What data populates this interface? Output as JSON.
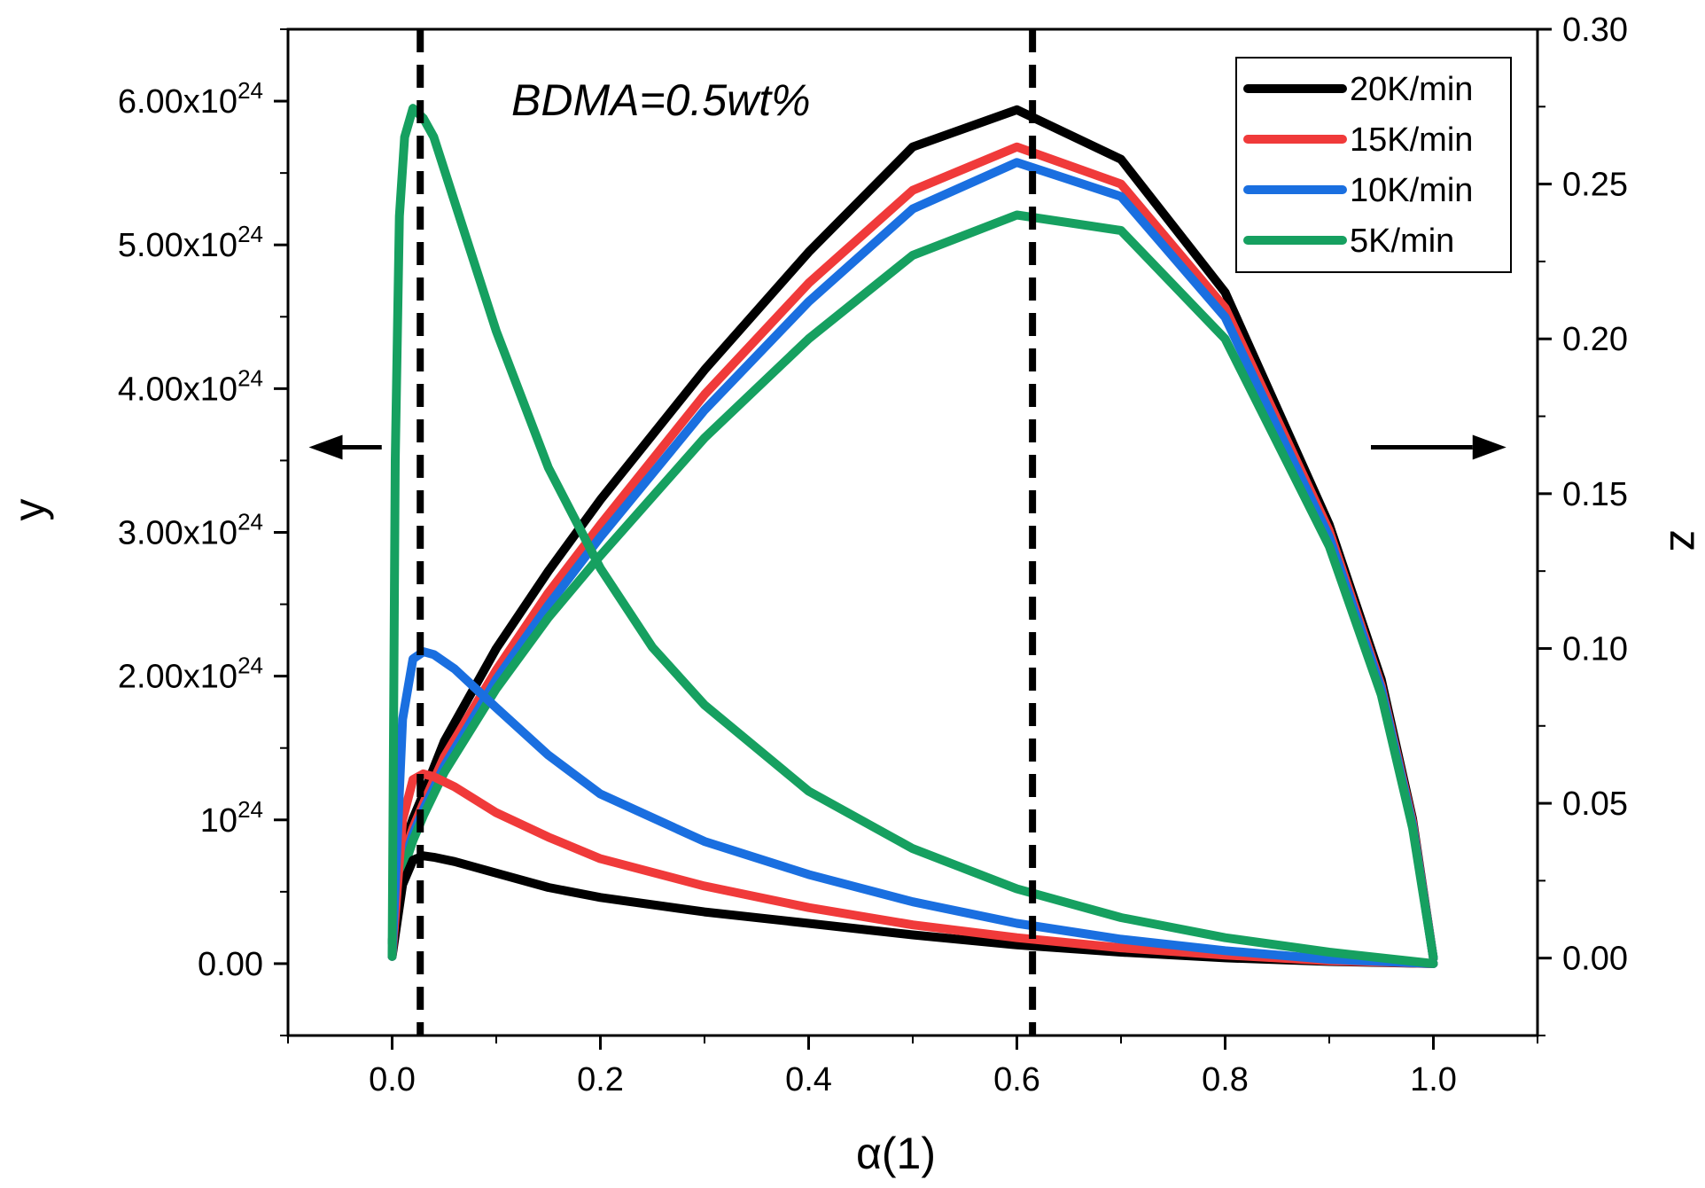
{
  "chart_data": {
    "type": "line",
    "annotation": "BDMA=0.5wt%",
    "xlabel": "α(1)",
    "ylabel_left": "y",
    "ylabel_right": "z",
    "xlim": [
      -0.1,
      1.1
    ],
    "ylim_left": [
      -5e+23,
      6.5e+24
    ],
    "ylim_right": [
      -0.025,
      0.3
    ],
    "x_ticks": [
      {
        "value": 0.0,
        "label": "0.0"
      },
      {
        "value": 0.2,
        "label": "0.2"
      },
      {
        "value": 0.4,
        "label": "0.4"
      },
      {
        "value": 0.6,
        "label": "0.6"
      },
      {
        "value": 0.8,
        "label": "0.8"
      },
      {
        "value": 1.0,
        "label": "1.0"
      }
    ],
    "y_left_ticks": [
      {
        "value": 0,
        "label": "0.00",
        "exp": ""
      },
      {
        "value": 1e+24,
        "label": "10",
        "exp": "24"
      },
      {
        "value": 2e+24,
        "label": "2.00x10",
        "exp": "24"
      },
      {
        "value": 3e+24,
        "label": "3.00x10",
        "exp": "24"
      },
      {
        "value": 4e+24,
        "label": "4.00x10",
        "exp": "24"
      },
      {
        "value": 5e+24,
        "label": "5.00x10",
        "exp": "24"
      },
      {
        "value": 6e+24,
        "label": "6.00x10",
        "exp": "24"
      }
    ],
    "y_right_ticks": [
      {
        "value": 0.0,
        "label": "0.00"
      },
      {
        "value": 0.05,
        "label": "0.05"
      },
      {
        "value": 0.1,
        "label": "0.10"
      },
      {
        "value": 0.15,
        "label": "0.15"
      },
      {
        "value": 0.2,
        "label": "0.20"
      },
      {
        "value": 0.25,
        "label": "0.25"
      },
      {
        "value": 0.3,
        "label": "0.30"
      }
    ],
    "vlines": [
      0.027,
      0.615
    ],
    "arrows": [
      {
        "direction": "left",
        "axis": "y",
        "from_x": -0.01,
        "to_x": -0.08,
        "at_y": 0.165
      },
      {
        "direction": "right",
        "axis": "z",
        "from_x": 0.94,
        "to_x": 1.07,
        "at_y": 0.165
      }
    ],
    "legend": {
      "position": "top-right"
    },
    "series": [
      {
        "name": "20K/min",
        "color": "#000000",
        "y_left": {
          "x": [
            0,
            0.01,
            0.02,
            0.03,
            0.04,
            0.06,
            0.1,
            0.15,
            0.2,
            0.3,
            0.4,
            0.5,
            0.6,
            0.7,
            0.8,
            0.9,
            1.0
          ],
          "y": [
            5e+22,
            5.5e+23,
            7.2e+23,
            7.5e+23,
            7.4e+23,
            7.1e+23,
            6.3e+23,
            5.3e+23,
            4.6e+23,
            3.6e+23,
            2.8e+23,
            2e+23,
            1.3e+23,
            8e+22,
            4e+22,
            1.5e+22,
            0
          ]
        },
        "z_right": {
          "x": [
            0,
            0.005,
            0.01,
            0.02,
            0.03,
            0.05,
            0.1,
            0.15,
            0.2,
            0.3,
            0.4,
            0.5,
            0.6,
            0.7,
            0.8,
            0.9,
            0.95,
            0.98,
            1.0
          ],
          "z": [
            0.005,
            0.025,
            0.035,
            0.045,
            0.053,
            0.07,
            0.1,
            0.125,
            0.148,
            0.19,
            0.228,
            0.262,
            0.274,
            0.258,
            0.215,
            0.14,
            0.09,
            0.045,
            0
          ]
        }
      },
      {
        "name": "15K/min",
        "color": "#f03a3a",
        "y_left": {
          "x": [
            0,
            0.01,
            0.02,
            0.03,
            0.04,
            0.06,
            0.1,
            0.15,
            0.2,
            0.3,
            0.4,
            0.5,
            0.6,
            0.7,
            0.8,
            0.9,
            1.0
          ],
          "y": [
            5e+22,
            1e+24,
            1.28e+24,
            1.32e+24,
            1.3e+24,
            1.23e+24,
            1.05e+24,
            8.8e+23,
            7.3e+23,
            5.4e+23,
            3.9e+23,
            2.7e+23,
            1.8e+23,
            1.1e+23,
            6e+22,
            2e+22,
            0
          ]
        },
        "z_right": {
          "x": [
            0,
            0.005,
            0.01,
            0.02,
            0.03,
            0.05,
            0.1,
            0.15,
            0.2,
            0.3,
            0.4,
            0.5,
            0.6,
            0.7,
            0.8,
            0.9,
            0.95,
            0.98,
            1.0
          ],
          "z": [
            0.005,
            0.022,
            0.032,
            0.042,
            0.05,
            0.065,
            0.093,
            0.118,
            0.14,
            0.182,
            0.218,
            0.248,
            0.262,
            0.25,
            0.21,
            0.138,
            0.088,
            0.044,
            0
          ]
        }
      },
      {
        "name": "10K/min",
        "color": "#1a6fe0",
        "y_left": {
          "x": [
            0,
            0.01,
            0.02,
            0.03,
            0.04,
            0.06,
            0.1,
            0.15,
            0.2,
            0.3,
            0.4,
            0.5,
            0.6,
            0.7,
            0.8,
            0.9,
            1.0
          ],
          "y": [
            5e+22,
            1.7e+24,
            2.12e+24,
            2.17e+24,
            2.15e+24,
            2.05e+24,
            1.78e+24,
            1.45e+24,
            1.18e+24,
            8.5e+23,
            6.2e+23,
            4.3e+23,
            2.8e+23,
            1.7e+23,
            9e+22,
            3e+22,
            0
          ]
        },
        "z_right": {
          "x": [
            0,
            0.005,
            0.01,
            0.02,
            0.03,
            0.05,
            0.1,
            0.15,
            0.2,
            0.3,
            0.4,
            0.5,
            0.6,
            0.7,
            0.8,
            0.9,
            0.95,
            0.98,
            1.0
          ],
          "z": [
            0.005,
            0.02,
            0.03,
            0.04,
            0.048,
            0.062,
            0.09,
            0.114,
            0.136,
            0.177,
            0.212,
            0.242,
            0.257,
            0.246,
            0.207,
            0.136,
            0.087,
            0.043,
            0
          ]
        }
      },
      {
        "name": "5K/min",
        "color": "#16a060",
        "y_left": {
          "x": [
            0,
            0.003,
            0.007,
            0.012,
            0.02,
            0.03,
            0.04,
            0.06,
            0.1,
            0.15,
            0.2,
            0.25,
            0.3,
            0.4,
            0.5,
            0.6,
            0.7,
            0.8,
            0.9,
            1.0
          ],
          "y": [
            5e+22,
            3.5e+24,
            5.2e+24,
            5.75e+24,
            5.95e+24,
            5.88e+24,
            5.75e+24,
            5.3e+24,
            4.4e+24,
            3.45e+24,
            2.75e+24,
            2.2e+24,
            1.8e+24,
            1.2e+24,
            8e+23,
            5.2e+23,
            3.2e+23,
            1.8e+23,
            8e+22,
            0
          ]
        },
        "z_right": {
          "x": [
            0,
            0.005,
            0.01,
            0.02,
            0.03,
            0.05,
            0.1,
            0.15,
            0.2,
            0.3,
            0.4,
            0.5,
            0.6,
            0.7,
            0.8,
            0.9,
            0.95,
            0.98,
            1.0
          ],
          "z": [
            0.005,
            0.018,
            0.028,
            0.038,
            0.046,
            0.06,
            0.087,
            0.11,
            0.13,
            0.168,
            0.2,
            0.227,
            0.24,
            0.235,
            0.2,
            0.133,
            0.085,
            0.042,
            0
          ]
        }
      }
    ]
  }
}
